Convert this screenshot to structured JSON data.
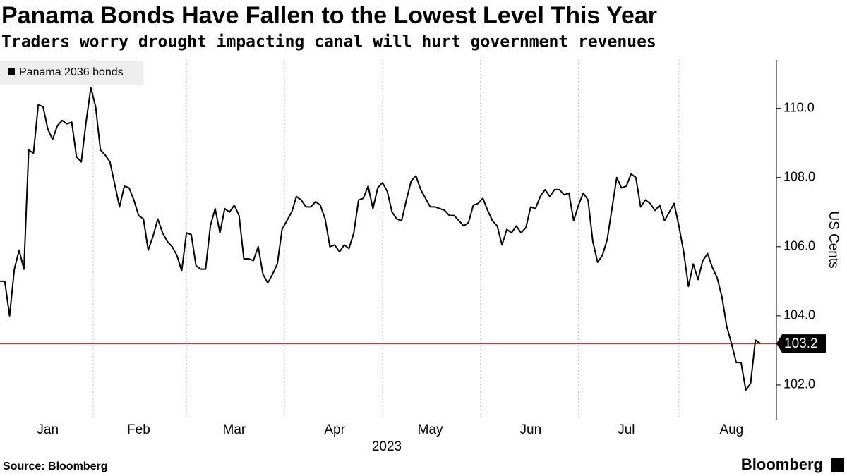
{
  "chart_data": {
    "type": "line",
    "title": "Panama Bonds Have Fallen to the Lowest Level This Year",
    "subtitle": "Traders worry drought impacting canal will hurt government revenues",
    "xlabel": "2023",
    "ylabel": "US Cents",
    "source": "Source: Bloomberg",
    "brand": "Bloomberg",
    "categories": [
      null,
      null,
      null,
      null,
      null,
      null,
      null,
      null,
      null,
      null,
      "Jan",
      null,
      null,
      null,
      null,
      null,
      null,
      null,
      null,
      null,
      null,
      null,
      null,
      null,
      null,
      null,
      null,
      null,
      null,
      "Feb",
      null,
      null,
      null,
      null,
      null,
      null,
      null,
      null,
      null,
      null,
      null,
      null,
      null,
      null,
      null,
      null,
      null,
      null,
      null,
      "Mar",
      null,
      null,
      null,
      null,
      null,
      null,
      null,
      null,
      null,
      null,
      null,
      null,
      null,
      null,
      null,
      null,
      null,
      null,
      null,
      null,
      "Apr",
      null,
      null,
      null,
      null,
      null,
      null,
      null,
      null,
      null,
      null,
      null,
      null,
      null,
      null,
      null,
      null,
      null,
      null,
      null,
      "May",
      null,
      null,
      null,
      null,
      null,
      null,
      null,
      null,
      null,
      null,
      null,
      null,
      null,
      null,
      null,
      null,
      null,
      null,
      null,
      null,
      "Jun",
      null,
      null,
      null,
      null,
      null,
      null,
      null,
      null,
      null,
      null,
      null,
      null,
      null,
      null,
      null,
      null,
      null,
      null,
      null,
      "Jul",
      null,
      null,
      null,
      null,
      null,
      null,
      null,
      null,
      null,
      null,
      null,
      null,
      null,
      null,
      null,
      null,
      null,
      null,
      null,
      null,
      null,
      "Aug",
      null,
      null,
      null,
      null,
      null,
      null
    ],
    "series": [
      {
        "name": "Panama 2036 bonds",
        "color": "#000000",
        "values": [
          105.0,
          105.0,
          104.0,
          105.35,
          105.9,
          105.35,
          108.8,
          108.7,
          110.1,
          110.05,
          109.4,
          109.1,
          109.5,
          109.65,
          109.55,
          109.6,
          108.6,
          108.45,
          109.6,
          110.6,
          110.05,
          108.8,
          108.65,
          108.45,
          107.8,
          107.15,
          107.75,
          107.7,
          107.35,
          106.9,
          106.8,
          105.9,
          106.3,
          106.8,
          106.4,
          106.15,
          106.0,
          105.75,
          105.3,
          106.4,
          106.35,
          105.45,
          105.35,
          105.35,
          106.6,
          107.1,
          106.4,
          107.1,
          107.0,
          107.2,
          106.9,
          105.65,
          105.65,
          105.6,
          106.0,
          105.2,
          104.95,
          105.2,
          105.5,
          106.5,
          106.75,
          107.0,
          107.45,
          107.35,
          107.15,
          107.15,
          107.3,
          107.2,
          106.8,
          106.0,
          106.05,
          105.85,
          106.05,
          105.95,
          106.4,
          107.35,
          107.4,
          107.75,
          107.1,
          107.7,
          107.85,
          107.6,
          107.0,
          106.8,
          106.75,
          107.35,
          107.9,
          108.05,
          107.65,
          107.4,
          107.15,
          107.15,
          107.1,
          107.05,
          106.9,
          106.9,
          106.75,
          106.6,
          106.7,
          107.2,
          107.25,
          107.4,
          107.05,
          106.75,
          106.6,
          106.05,
          106.5,
          106.4,
          106.6,
          106.4,
          106.55,
          107.15,
          107.1,
          107.45,
          107.65,
          107.45,
          107.65,
          107.65,
          107.5,
          107.55,
          106.75,
          107.2,
          107.55,
          107.35,
          106.15,
          105.55,
          105.75,
          106.2,
          107.1,
          108.0,
          107.7,
          107.75,
          108.1,
          108.0,
          107.15,
          107.35,
          107.25,
          107.05,
          107.2,
          106.75,
          107.0,
          107.25,
          106.6,
          105.85,
          104.85,
          105.5,
          105.05,
          105.6,
          105.8,
          105.4,
          105.1,
          104.55,
          103.7,
          103.2,
          102.65,
          102.65,
          101.85,
          102.05,
          103.3,
          103.2
        ]
      }
    ],
    "ylim": [
      101,
      111.4
    ],
    "yticks": [
      {
        "value": 102,
        "label": "102.0"
      },
      {
        "value": 104,
        "label": "104.0"
      },
      {
        "value": 106,
        "label": "106.0"
      },
      {
        "value": 108,
        "label": "108.0"
      },
      {
        "value": 110,
        "label": "110.0"
      }
    ],
    "reference_line": {
      "value": 103.2,
      "color": "#e8283c"
    },
    "legend": "top-left",
    "y_axis_side": "right"
  }
}
